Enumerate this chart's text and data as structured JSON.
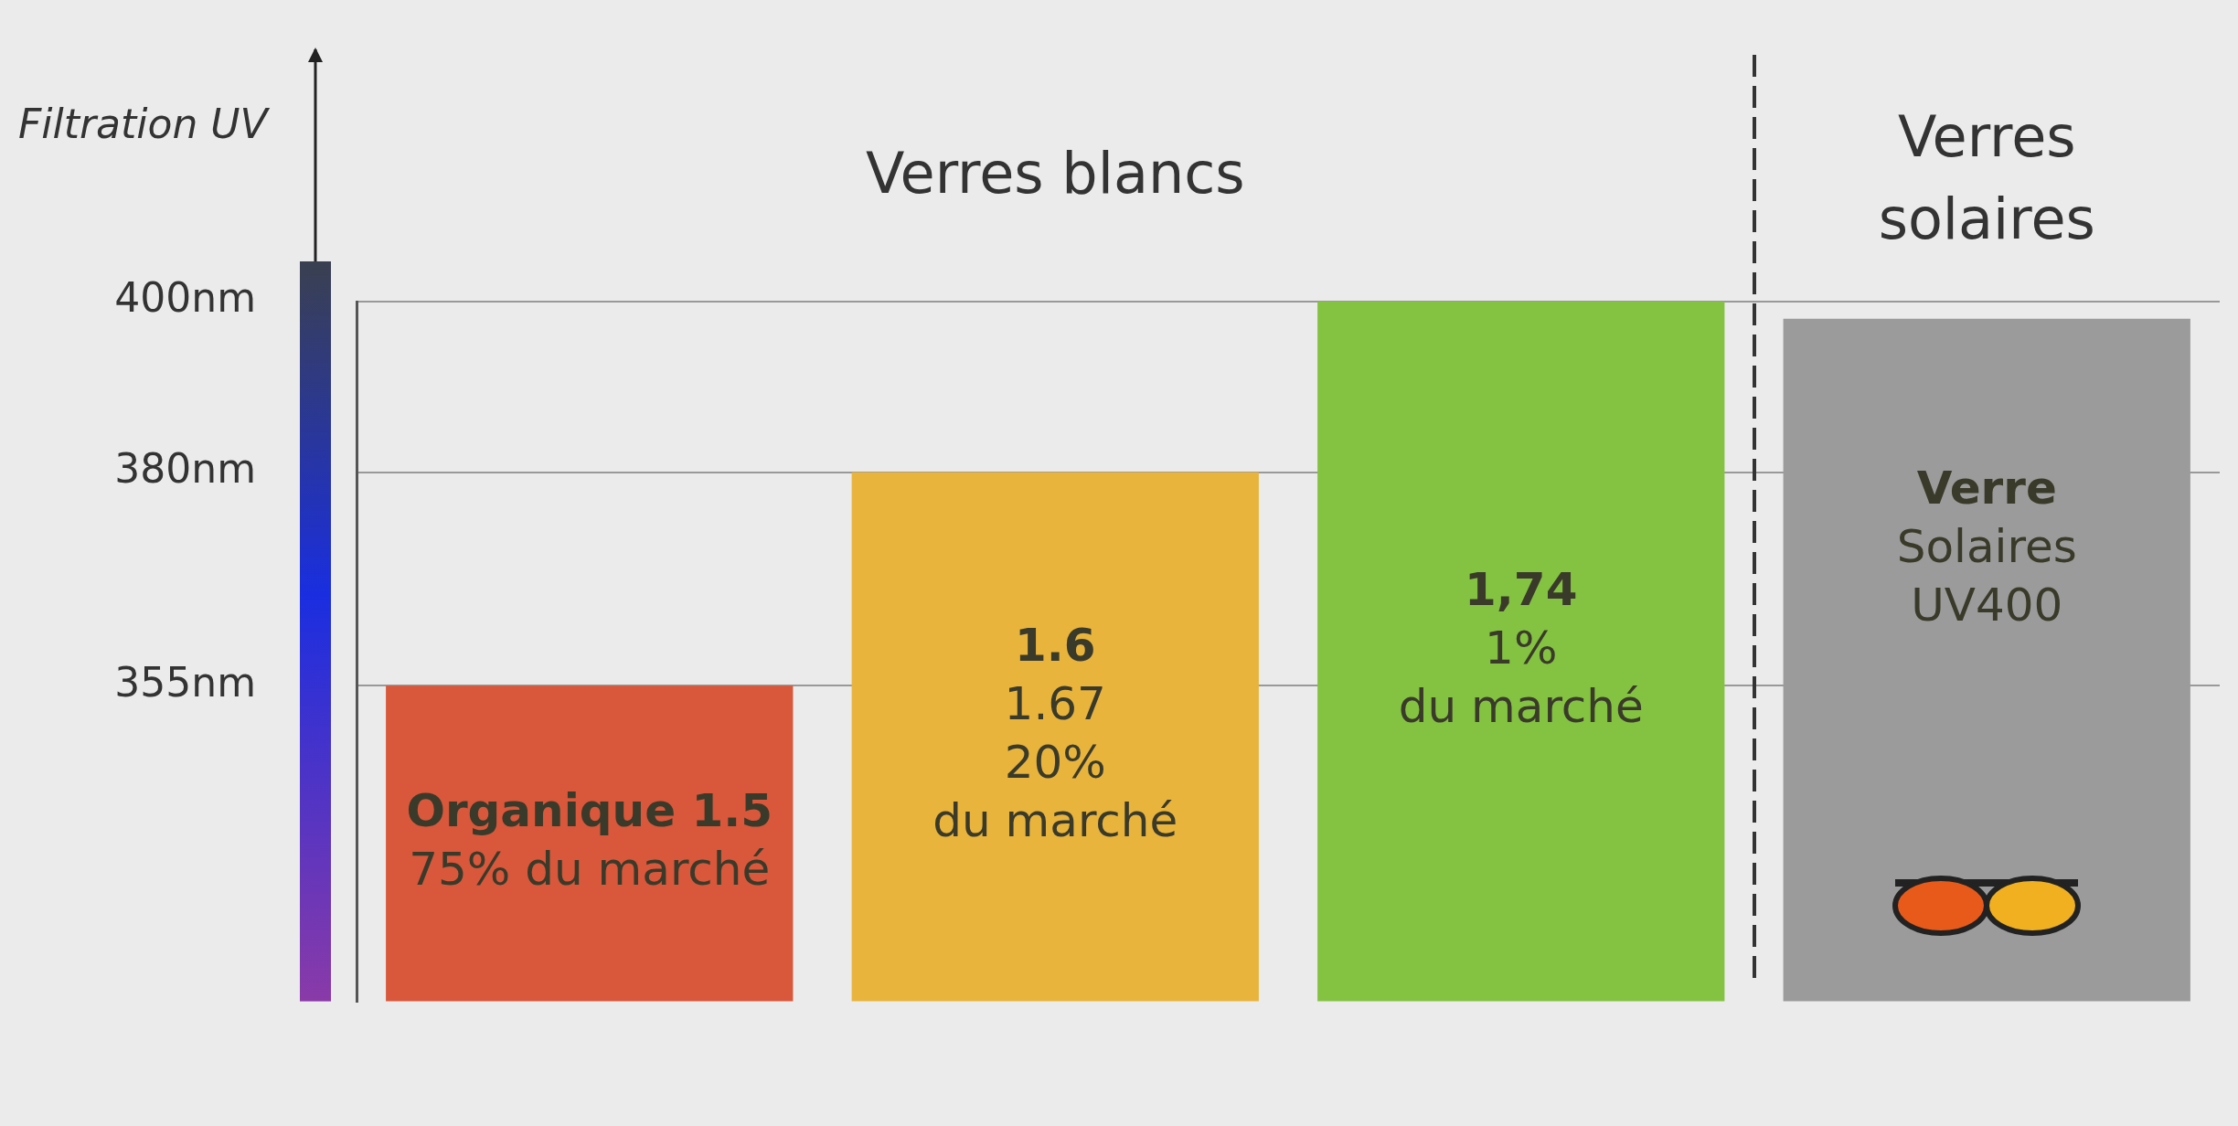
{
  "chart_data": {
    "type": "bar",
    "ylabel": "Filtration UV",
    "categories": [
      "Organique 1.5\n75% du marché",
      "1.6\n1.67\n20%\ndu marché",
      "1,74\n1%\ndu marché",
      "Verre\nSolaires\nUV400"
    ],
    "values": [
      355,
      380,
      400,
      398
    ],
    "colors": [
      "#d9573a",
      "#e9b43c",
      "#84c341",
      "#9b9b9b"
    ],
    "ylim": [
      318,
      400
    ],
    "yticks": [
      {
        "value": 355,
        "label": "355nm"
      },
      {
        "value": 380,
        "label": "380nm"
      },
      {
        "value": 400,
        "label": "400nm"
      }
    ],
    "grid": "y",
    "legend": false,
    "tick_labels": "y",
    "annotations": [
      "Verres blancs",
      "Verres\nsolaires"
    ]
  }
}
